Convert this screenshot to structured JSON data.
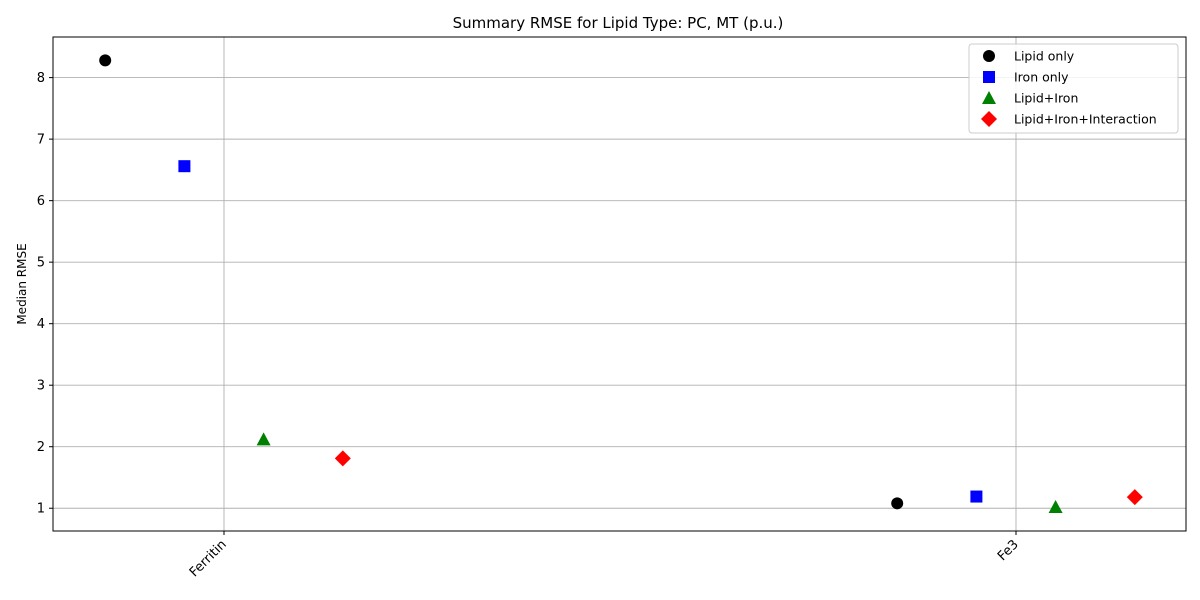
{
  "chart_data": {
    "type": "scatter",
    "title": "Summary RMSE for Lipid Type: PC, MT (p.u.)",
    "xlabel": "",
    "ylabel": "Median RMSE",
    "categories": [
      "Ferritin",
      "Fe3"
    ],
    "yticks": [
      1,
      2,
      3,
      4,
      5,
      6,
      7,
      8
    ],
    "ylim": [
      0.63,
      8.66
    ],
    "grid": true,
    "legend_position": "top-right",
    "series": [
      {
        "name": "Lipid only",
        "marker": "circle",
        "color": "#000000",
        "offset": -1.5,
        "values": [
          8.28,
          1.08
        ]
      },
      {
        "name": "Iron only",
        "marker": "square",
        "color": "#0000ff",
        "offset": -0.5,
        "values": [
          6.56,
          1.19
        ]
      },
      {
        "name": "Lipid+Iron",
        "marker": "triangle",
        "color": "#008000",
        "offset": 0.5,
        "values": [
          2.12,
          1.02
        ]
      },
      {
        "name": "Lipid+Iron+Interaction",
        "marker": "diamond",
        "color": "#ff0000",
        "offset": 1.5,
        "values": [
          1.81,
          1.18
        ]
      }
    ]
  }
}
